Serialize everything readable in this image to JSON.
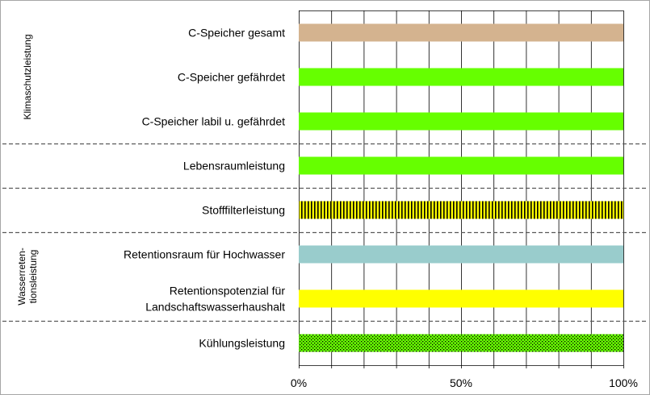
{
  "chart_data": {
    "type": "bar",
    "orientation": "horizontal",
    "categories": [
      "C-Speicher gesamt",
      "C-Speicher gefährdet",
      "C-Speicher labil u. gefährdet",
      "Lebensraumleistung",
      "Stofffilterleistung",
      "Retentionsraum für Hochwasser",
      "Retentionspotenzial für Landschaftswasserhaushalt",
      "Kühlungsleistung"
    ],
    "category_lines": [
      [
        "C-Speicher gesamt"
      ],
      [
        "C-Speicher gefährdet"
      ],
      [
        "C-Speicher labil u. gefährdet"
      ],
      [
        "Lebensraumleistung"
      ],
      [
        "Stofffilterleistung"
      ],
      [
        "Retentionsraum für Hochwasser"
      ],
      [
        "Retentionspotenzial für",
        "Landschaftswasserhaushalt"
      ],
      [
        "Kühlungsleistung"
      ]
    ],
    "values": [
      100,
      100,
      100,
      100,
      100,
      100,
      100,
      100
    ],
    "bar_styles": [
      {
        "fill": "#d4b38f",
        "pattern": "solid"
      },
      {
        "fill": "#66ff00",
        "pattern": "solid"
      },
      {
        "fill": "#66ff00",
        "pattern": "solid"
      },
      {
        "fill": "#66ff00",
        "pattern": "solid"
      },
      {
        "fill": "#ffff00",
        "pattern": "vertical-stripes",
        "pattern_color": "#000000"
      },
      {
        "fill": "#99cccc",
        "pattern": "solid"
      },
      {
        "fill": "#ffff00",
        "pattern": "solid"
      },
      {
        "fill": "#66ff00",
        "pattern": "dots",
        "pattern_color": "#000000"
      }
    ],
    "xlim": [
      0,
      100
    ],
    "x_ticks": [
      0,
      10,
      20,
      30,
      40,
      50,
      60,
      70,
      80,
      90,
      100
    ],
    "x_tick_labels": [
      {
        "value": 0,
        "text": "0%"
      },
      {
        "value": 50,
        "text": "50%"
      },
      {
        "value": 100,
        "text": "100%"
      }
    ],
    "grid": true,
    "groups": [
      {
        "label_lines": [
          "Klimaschutzleistung"
        ],
        "from": 0,
        "to": 2
      },
      {
        "label_lines": [
          "Wasserreten-",
          "tionsleistung"
        ],
        "from": 5,
        "to": 6
      }
    ],
    "group_separators_after": [
      2,
      3,
      4,
      6
    ],
    "colors": {
      "grid": "#000000",
      "separator": "#595959",
      "frame": "#a6a6a6"
    }
  }
}
